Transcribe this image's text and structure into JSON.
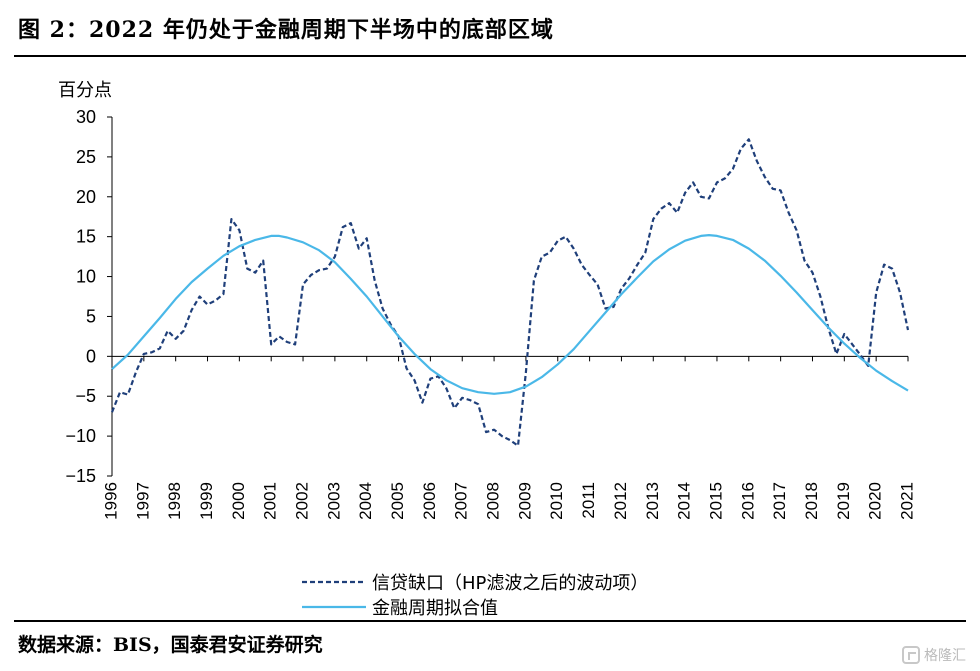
{
  "title": "图 2：2022 年仍处于金融周期下半场中的底部区域",
  "source": "数据来源：BIS，国泰君安证券研究",
  "watermark": "格隆汇",
  "chart_data": {
    "type": "line",
    "ylabel": "百分点",
    "ylim": [
      -15,
      30
    ],
    "yticks": [
      -15,
      -10,
      -5,
      0,
      5,
      10,
      15,
      20,
      25,
      30
    ],
    "yticklabels": [
      "−15",
      "−10",
      "−5",
      "0",
      "5",
      "10",
      "15",
      "20",
      "25",
      "30"
    ],
    "xlim": [
      1996,
      2021
    ],
    "xticks": [
      "1996",
      "1997",
      "1998",
      "1999",
      "2000",
      "2001",
      "2002",
      "2003",
      "2004",
      "2005",
      "2006",
      "2007",
      "2008",
      "2009",
      "2010",
      "2011",
      "2012",
      "2013",
      "2014",
      "2015",
      "2016",
      "2017",
      "2018",
      "2019",
      "2020",
      "2021"
    ],
    "legend_position": "bottom",
    "series": [
      {
        "name": "信贷缺口（HP滤波之后的波动项）",
        "color": "#1f3f7a",
        "style": "dashed",
        "points": [
          [
            1996.0,
            -7
          ],
          [
            1996.25,
            -4.5
          ],
          [
            1996.5,
            -4.8
          ],
          [
            1996.75,
            -2
          ],
          [
            1997.0,
            0.3
          ],
          [
            1997.25,
            0.5
          ],
          [
            1997.5,
            1
          ],
          [
            1997.75,
            3.2
          ],
          [
            1998.0,
            2.2
          ],
          [
            1998.25,
            3.2
          ],
          [
            1998.5,
            5.8
          ],
          [
            1998.75,
            7.5
          ],
          [
            1999.0,
            6.5
          ],
          [
            1999.25,
            7
          ],
          [
            1999.5,
            7.8
          ],
          [
            1999.75,
            17.2
          ],
          [
            2000.0,
            15.8
          ],
          [
            2000.25,
            11
          ],
          [
            2000.5,
            10.5
          ],
          [
            2000.75,
            12
          ],
          [
            2001.0,
            1.5
          ],
          [
            2001.25,
            2.5
          ],
          [
            2001.5,
            1.8
          ],
          [
            2001.75,
            1.5
          ],
          [
            2002.0,
            9
          ],
          [
            2002.25,
            10.2
          ],
          [
            2002.5,
            10.8
          ],
          [
            2002.75,
            11
          ],
          [
            2003.0,
            12.5
          ],
          [
            2003.25,
            16.2
          ],
          [
            2003.5,
            16.7
          ],
          [
            2003.75,
            13.5
          ],
          [
            2004.0,
            14.8
          ],
          [
            2004.25,
            9.5
          ],
          [
            2004.5,
            6
          ],
          [
            2004.75,
            4
          ],
          [
            2005.0,
            2.5
          ],
          [
            2005.25,
            -1.5
          ],
          [
            2005.5,
            -3
          ],
          [
            2005.75,
            -5.8
          ],
          [
            2006.0,
            -2.8
          ],
          [
            2006.25,
            -2.5
          ],
          [
            2006.5,
            -4
          ],
          [
            2006.75,
            -6.5
          ],
          [
            2007.0,
            -5.2
          ],
          [
            2007.25,
            -5.5
          ],
          [
            2007.5,
            -6
          ],
          [
            2007.75,
            -9.5
          ],
          [
            2008.0,
            -9.2
          ],
          [
            2008.25,
            -10
          ],
          [
            2008.5,
            -10.5
          ],
          [
            2008.75,
            -11.2
          ],
          [
            2009.0,
            -2
          ],
          [
            2009.25,
            9.5
          ],
          [
            2009.5,
            12.5
          ],
          [
            2009.75,
            13
          ],
          [
            2010.0,
            14.5
          ],
          [
            2010.25,
            15
          ],
          [
            2010.5,
            13.5
          ],
          [
            2010.75,
            11.5
          ],
          [
            2011.0,
            10.2
          ],
          [
            2011.25,
            9
          ],
          [
            2011.5,
            6
          ],
          [
            2011.75,
            6.2
          ],
          [
            2012.0,
            8.5
          ],
          [
            2012.25,
            9.8
          ],
          [
            2012.5,
            11.5
          ],
          [
            2012.75,
            13
          ],
          [
            2013.0,
            17.2
          ],
          [
            2013.25,
            18.5
          ],
          [
            2013.5,
            19.2
          ],
          [
            2013.75,
            18
          ],
          [
            2014.0,
            20.5
          ],
          [
            2014.25,
            21.8
          ],
          [
            2014.5,
            20
          ],
          [
            2014.75,
            19.8
          ],
          [
            2015.0,
            21.8
          ],
          [
            2015.25,
            22.3
          ],
          [
            2015.5,
            23.5
          ],
          [
            2015.75,
            26
          ],
          [
            2016.0,
            27.2
          ],
          [
            2016.25,
            24.5
          ],
          [
            2016.5,
            22.5
          ],
          [
            2016.75,
            21
          ],
          [
            2017.0,
            20.8
          ],
          [
            2017.25,
            18
          ],
          [
            2017.5,
            15.8
          ],
          [
            2017.75,
            12
          ],
          [
            2018.0,
            10.5
          ],
          [
            2018.25,
            7.5
          ],
          [
            2018.5,
            3.5
          ],
          [
            2018.75,
            0.3
          ],
          [
            2019.0,
            2.8
          ],
          [
            2019.25,
            1.5
          ],
          [
            2019.5,
            0.2
          ],
          [
            2019.75,
            -1.2
          ],
          [
            2020.0,
            8
          ],
          [
            2020.25,
            11.5
          ],
          [
            2020.5,
            11
          ],
          [
            2020.75,
            8
          ],
          [
            2021.0,
            3.3
          ]
        ]
      },
      {
        "name": "金融周期拟合值",
        "color": "#4ab8e8",
        "style": "solid",
        "points": [
          [
            1996.0,
            -1.6
          ],
          [
            1996.5,
            0.2
          ],
          [
            1997.0,
            2.5
          ],
          [
            1997.5,
            4.8
          ],
          [
            1998.0,
            7.2
          ],
          [
            1998.5,
            9.3
          ],
          [
            1999.0,
            11.0
          ],
          [
            1999.5,
            12.6
          ],
          [
            2000.0,
            13.8
          ],
          [
            2000.5,
            14.6
          ],
          [
            2001.0,
            15.1
          ],
          [
            2001.25,
            15.1
          ],
          [
            2001.5,
            14.9
          ],
          [
            2002.0,
            14.3
          ],
          [
            2002.5,
            13.3
          ],
          [
            2003.0,
            11.8
          ],
          [
            2003.5,
            9.7
          ],
          [
            2004.0,
            7.5
          ],
          [
            2004.5,
            5.0
          ],
          [
            2005.0,
            2.5
          ],
          [
            2005.5,
            0.3
          ],
          [
            2006.0,
            -1.6
          ],
          [
            2006.5,
            -3.0
          ],
          [
            2007.0,
            -4.0
          ],
          [
            2007.5,
            -4.5
          ],
          [
            2008.0,
            -4.7
          ],
          [
            2008.5,
            -4.5
          ],
          [
            2009.0,
            -3.8
          ],
          [
            2009.5,
            -2.6
          ],
          [
            2010.0,
            -1.0
          ],
          [
            2010.5,
            0.9
          ],
          [
            2011.0,
            3.2
          ],
          [
            2011.5,
            5.5
          ],
          [
            2012.0,
            7.8
          ],
          [
            2012.5,
            9.9
          ],
          [
            2013.0,
            11.9
          ],
          [
            2013.5,
            13.4
          ],
          [
            2014.0,
            14.5
          ],
          [
            2014.5,
            15.1
          ],
          [
            2014.75,
            15.2
          ],
          [
            2015.0,
            15.1
          ],
          [
            2015.5,
            14.6
          ],
          [
            2016.0,
            13.5
          ],
          [
            2016.5,
            12.0
          ],
          [
            2017.0,
            10.1
          ],
          [
            2017.5,
            8.0
          ],
          [
            2018.0,
            5.8
          ],
          [
            2018.5,
            3.6
          ],
          [
            2019.0,
            1.6
          ],
          [
            2019.5,
            -0.2
          ],
          [
            2020.0,
            -1.8
          ],
          [
            2020.5,
            -3.1
          ],
          [
            2021.0,
            -4.3
          ]
        ]
      }
    ]
  }
}
